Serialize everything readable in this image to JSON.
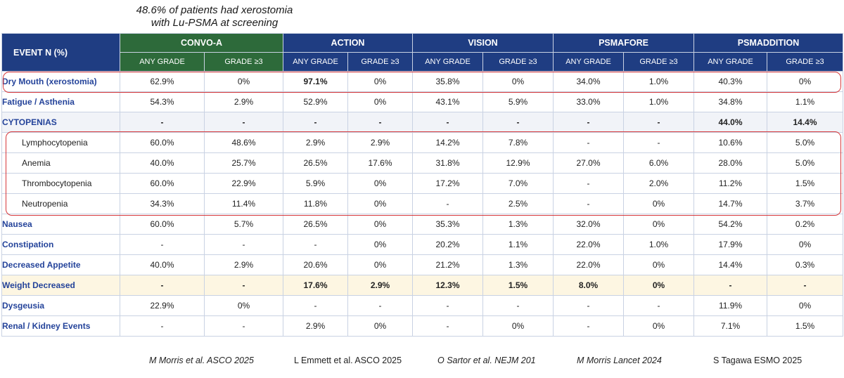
{
  "annotation": {
    "line1": "48.6% of patients had xerostomia",
    "line2": "with Lu-PSMA at screening"
  },
  "table": {
    "row_header": "EVENT N (%)",
    "trials": [
      "CONVO-A",
      "ACTION",
      "VISION",
      "PSMAFORE",
      "PSMADDITION"
    ],
    "sub_headers": [
      "ANY GRADE",
      "GRADE ≥3"
    ],
    "rows": [
      {
        "label": "Dry Mouth (xerostomia)",
        "values": [
          "62.9%",
          "0%",
          "97.1%",
          "0%",
          "35.8%",
          "0%",
          "34.0%",
          "1.0%",
          "40.3%",
          "0%"
        ]
      },
      {
        "label": "Fatigue / Asthenia",
        "values": [
          "54.3%",
          "2.9%",
          "52.9%",
          "0%",
          "43.1%",
          "5.9%",
          "33.0%",
          "1.0%",
          "34.8%",
          "1.1%"
        ]
      },
      {
        "label": "CYTOPENIAS",
        "values": [
          "-",
          "-",
          "-",
          "-",
          "-",
          "-",
          "-",
          "-",
          "44.0%",
          "14.4%"
        ]
      },
      {
        "label": "Lymphocytopenia",
        "values": [
          "60.0%",
          "48.6%",
          "2.9%",
          "2.9%",
          "14.2%",
          "7.8%",
          "-",
          "-",
          "10.6%",
          "5.0%"
        ]
      },
      {
        "label": "Anemia",
        "values": [
          "40.0%",
          "25.7%",
          "26.5%",
          "17.6%",
          "31.8%",
          "12.9%",
          "27.0%",
          "6.0%",
          "28.0%",
          "5.0%"
        ]
      },
      {
        "label": "Thrombocytopenia",
        "values": [
          "60.0%",
          "22.9%",
          "5.9%",
          "0%",
          "17.2%",
          "7.0%",
          "-",
          "2.0%",
          "11.2%",
          "1.5%"
        ]
      },
      {
        "label": "Neutropenia",
        "values": [
          "34.3%",
          "11.4%",
          "11.8%",
          "0%",
          "-",
          "2.5%",
          "-",
          "0%",
          "14.7%",
          "3.7%"
        ]
      },
      {
        "label": "Nausea",
        "values": [
          "60.0%",
          "5.7%",
          "26.5%",
          "0%",
          "35.3%",
          "1.3%",
          "32.0%",
          "0%",
          "54.2%",
          "0.2%"
        ]
      },
      {
        "label": "Constipation",
        "values": [
          "-",
          "-",
          "-",
          "0%",
          "20.2%",
          "1.1%",
          "22.0%",
          "1.0%",
          "17.9%",
          "0%"
        ]
      },
      {
        "label": "Decreased Appetite",
        "values": [
          "40.0%",
          "2.9%",
          "20.6%",
          "0%",
          "21.2%",
          "1.3%",
          "22.0%",
          "0%",
          "14.4%",
          "0.3%"
        ]
      },
      {
        "label": "Weight Decreased",
        "values": [
          "-",
          "-",
          "17.6%",
          "2.9%",
          "12.3%",
          "1.5%",
          "8.0%",
          "0%",
          "-",
          "-"
        ]
      },
      {
        "label": "Dysgeusia",
        "values": [
          "22.9%",
          "0%",
          "-",
          "-",
          "-",
          "-",
          "-",
          "-",
          "11.9%",
          "0%"
        ]
      },
      {
        "label": "Renal / Kidney Events",
        "values": [
          "-",
          "-",
          "2.9%",
          "0%",
          "-",
          "0%",
          "-",
          "0%",
          "7.1%",
          "1.5%"
        ]
      }
    ]
  },
  "references": [
    "M Morris et al. ASCO 2025",
    "L Emmett et al. ASCO 2025",
    "O Sartor et al. NEJM 201",
    "M Morris Lancet 2024",
    "S Tagawa ESMO 2025"
  ],
  "colors": {
    "header_navy": "#1f3d82",
    "convo_green": "#2d6a3a",
    "label_blue": "#24439a",
    "highlight_box": "#d6383b",
    "weight_row_bg": "#fdf6e2"
  }
}
